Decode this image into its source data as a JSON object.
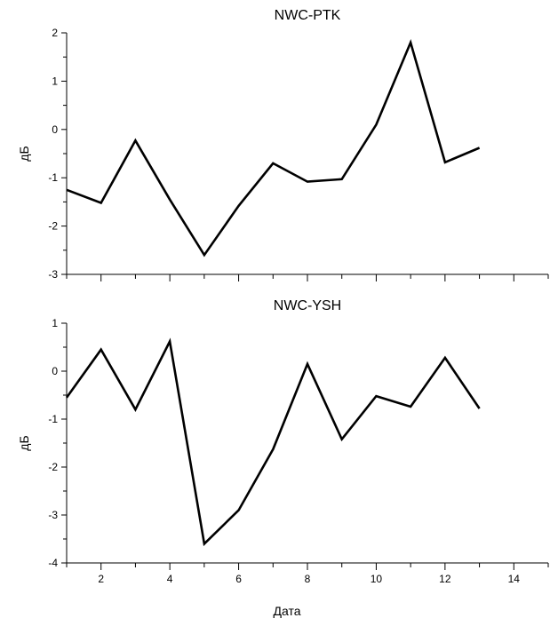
{
  "chart_data": [
    {
      "type": "line",
      "title": "NWC-PTK",
      "ylabel": "дБ",
      "xlabel": "",
      "xlim": [
        1,
        15
      ],
      "ylim": [
        -3,
        2
      ],
      "x_ticks_labeled": [],
      "y_ticks_labeled": [
        2,
        1,
        0,
        -1,
        -2,
        -3
      ],
      "y_tick_labels": [
        "2",
        "1",
        "0",
        "-1",
        "-2",
        "-3"
      ],
      "grid": false,
      "series": [
        {
          "x": [
            1,
            2,
            3,
            4,
            5,
            6,
            7,
            8,
            9,
            10,
            11,
            12,
            13
          ],
          "values": [
            -1.25,
            -1.52,
            -0.23,
            -1.45,
            -2.6,
            -1.58,
            -0.7,
            -1.08,
            -1.03,
            0.1,
            1.8,
            -0.68,
            -0.38
          ],
          "color": "#000000"
        }
      ]
    },
    {
      "type": "line",
      "title": "NWC-YSH",
      "ylabel": "дБ",
      "xlabel": "Дата",
      "xlim": [
        1,
        15
      ],
      "ylim": [
        -4,
        1
      ],
      "x_ticks_labeled": [
        2,
        4,
        6,
        8,
        10,
        12,
        14
      ],
      "x_tick_labels": [
        "2",
        "4",
        "6",
        "8",
        "10",
        "12",
        "14"
      ],
      "y_ticks_labeled": [
        1,
        0,
        -1,
        -2,
        -3,
        -4
      ],
      "y_tick_labels": [
        "1",
        "0",
        "-1",
        "-2",
        "-3",
        "-4"
      ],
      "grid": false,
      "series": [
        {
          "x": [
            1,
            2,
            3,
            4,
            5,
            6,
            7,
            8,
            9,
            10,
            11,
            12,
            13
          ],
          "values": [
            -0.55,
            0.45,
            -0.8,
            0.62,
            -3.6,
            -2.9,
            -1.63,
            0.15,
            -1.42,
            -0.52,
            -0.74,
            0.28,
            -0.78
          ],
          "color": "#000000"
        }
      ]
    }
  ]
}
